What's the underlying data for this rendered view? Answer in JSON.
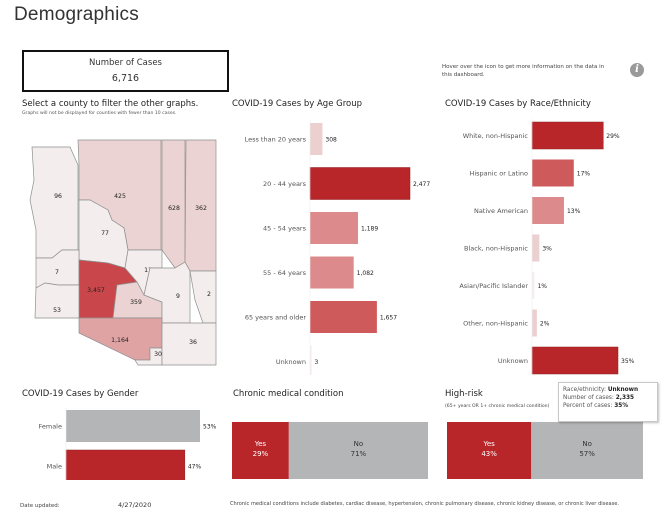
{
  "page": {
    "title": "Demographics",
    "kpi": {
      "label": "Number of Cases",
      "value": "6,716"
    },
    "hover_note": "Hover over the icon to get more information on the data in this dashboard.",
    "info_icon": "info-icon",
    "map_title": "Select a county to filter the other graphs.",
    "map_subtitle": "Graphs will not be displayed for counties with fewer than 10 cases.",
    "date_label": "Date updated:",
    "date_value": "4/27/2020",
    "footnote": "Chronic medical conditions include diabetes, cardiac disease, hypertension, chronic pulmonary disease, chronic kidney disease, or chronic liver disease.",
    "colors": {
      "dark_red": "#b9262a",
      "mid_red": "#cf5a5c",
      "light_red": "#dc8a8b",
      "pale_red": "#ecd0d0",
      "very_pale": "#f3eaea",
      "gray": "#b3b5b6"
    },
    "tooltip": {
      "label1": "Race/ethnicity:",
      "value1": "Unknown",
      "label2": "Number of cases:",
      "value2": "2,335",
      "label3": "Percent of cases:",
      "value3": "35%"
    }
  },
  "chart_data": [
    {
      "id": "county_map",
      "type": "heatmap",
      "title": "Select a county to filter the other graphs.",
      "regions": [
        {
          "name": "Mohave",
          "value": 96,
          "label": "96"
        },
        {
          "name": "Coconino",
          "value": 425,
          "label": "425"
        },
        {
          "name": "Navajo",
          "value": 628,
          "label": "628"
        },
        {
          "name": "Apache",
          "value": 362,
          "label": "362"
        },
        {
          "name": "Yavapai",
          "value": 77,
          "label": "77"
        },
        {
          "name": "La Paz",
          "value": 7,
          "label": "7"
        },
        {
          "name": "Maricopa",
          "value": 3457,
          "label": "3,457"
        },
        {
          "name": "Gila",
          "value": 11,
          "label": "11"
        },
        {
          "name": "Yuma",
          "value": 53,
          "label": "53"
        },
        {
          "name": "Pinal",
          "value": 359,
          "label": "359"
        },
        {
          "name": "Graham",
          "value": 9,
          "label": "9"
        },
        {
          "name": "Greenlee",
          "value": 2,
          "label": "2"
        },
        {
          "name": "Pima",
          "value": 1164,
          "label": "1,164"
        },
        {
          "name": "Santa Cruz",
          "value": 30,
          "label": "30"
        },
        {
          "name": "Cochise",
          "value": 36,
          "label": "36"
        }
      ]
    },
    {
      "id": "age",
      "type": "bar",
      "title": "COVID-19 Cases by Age Group",
      "categories": [
        "Less than 20 years",
        "20 - 44 years",
        "45 - 54 years",
        "55 - 64 years",
        "65 years and older",
        "Unknown"
      ],
      "values": [
        308,
        2477,
        1189,
        1082,
        1657,
        3
      ],
      "labels": [
        "308",
        "2,477",
        "1,189",
        "1,082",
        "1,657",
        "3"
      ],
      "xlim": [
        0,
        2477
      ]
    },
    {
      "id": "race",
      "type": "bar",
      "title": "COVID-19 Cases by Race/Ethnicity",
      "categories": [
        "White, non-Hispanic",
        "Hispanic or Latino",
        "Native American",
        "Black, non-Hispanic",
        "Asian/Pacific Islander",
        "Other, non-Hispanic",
        "Unknown"
      ],
      "values": [
        29,
        17,
        13,
        3,
        1,
        2,
        35
      ],
      "labels": [
        "29%",
        "17%",
        "13%",
        "3%",
        "1%",
        "2%",
        "35%"
      ],
      "xlim": [
        0,
        35
      ]
    },
    {
      "id": "gender",
      "type": "bar",
      "title": "COVID-19 Cases by Gender",
      "categories": [
        "Female",
        "Male"
      ],
      "values": [
        53,
        47
      ],
      "labels": [
        "53%",
        "47%"
      ],
      "xlim": [
        0,
        53
      ]
    },
    {
      "id": "chronic",
      "type": "bar",
      "title": "Chronic medical condition",
      "categories": [
        "Yes",
        "No"
      ],
      "values": [
        29,
        71
      ],
      "labels": [
        "29%",
        "71%"
      ],
      "stacked": true
    },
    {
      "id": "highrisk",
      "type": "bar",
      "title": "High-risk",
      "subtitle": "(65+ years OR 1+ chronic medical condition)",
      "categories": [
        "Yes",
        "No"
      ],
      "values": [
        43,
        57
      ],
      "labels": [
        "43%",
        "57%"
      ],
      "stacked": true
    }
  ]
}
